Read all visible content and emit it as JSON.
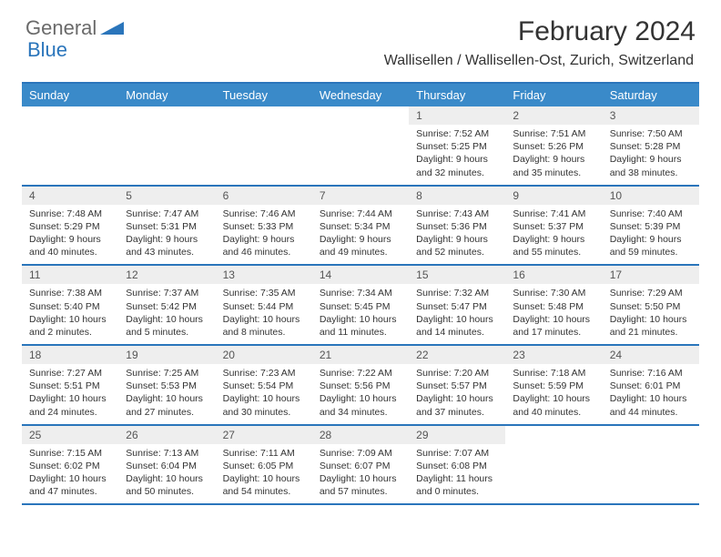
{
  "brand": {
    "part1": "General",
    "part2": "Blue",
    "color_gray": "#6a6a6a",
    "color_blue": "#2a75bb"
  },
  "title": "February 2024",
  "location": "Wallisellen / Wallisellen-Ost, Zurich, Switzerland",
  "colors": {
    "header_bg": "#3a8ac9",
    "header_text": "#ffffff",
    "border": "#2a75bb",
    "daynum_bg": "#eeeeee",
    "text": "#333333"
  },
  "day_names": [
    "Sunday",
    "Monday",
    "Tuesday",
    "Wednesday",
    "Thursday",
    "Friday",
    "Saturday"
  ],
  "weeks": [
    [
      {
        "n": "",
        "sr": "",
        "ss": "",
        "dl1": "",
        "dl2": ""
      },
      {
        "n": "",
        "sr": "",
        "ss": "",
        "dl1": "",
        "dl2": ""
      },
      {
        "n": "",
        "sr": "",
        "ss": "",
        "dl1": "",
        "dl2": ""
      },
      {
        "n": "",
        "sr": "",
        "ss": "",
        "dl1": "",
        "dl2": ""
      },
      {
        "n": "1",
        "sr": "Sunrise: 7:52 AM",
        "ss": "Sunset: 5:25 PM",
        "dl1": "Daylight: 9 hours",
        "dl2": "and 32 minutes."
      },
      {
        "n": "2",
        "sr": "Sunrise: 7:51 AM",
        "ss": "Sunset: 5:26 PM",
        "dl1": "Daylight: 9 hours",
        "dl2": "and 35 minutes."
      },
      {
        "n": "3",
        "sr": "Sunrise: 7:50 AM",
        "ss": "Sunset: 5:28 PM",
        "dl1": "Daylight: 9 hours",
        "dl2": "and 38 minutes."
      }
    ],
    [
      {
        "n": "4",
        "sr": "Sunrise: 7:48 AM",
        "ss": "Sunset: 5:29 PM",
        "dl1": "Daylight: 9 hours",
        "dl2": "and 40 minutes."
      },
      {
        "n": "5",
        "sr": "Sunrise: 7:47 AM",
        "ss": "Sunset: 5:31 PM",
        "dl1": "Daylight: 9 hours",
        "dl2": "and 43 minutes."
      },
      {
        "n": "6",
        "sr": "Sunrise: 7:46 AM",
        "ss": "Sunset: 5:33 PM",
        "dl1": "Daylight: 9 hours",
        "dl2": "and 46 minutes."
      },
      {
        "n": "7",
        "sr": "Sunrise: 7:44 AM",
        "ss": "Sunset: 5:34 PM",
        "dl1": "Daylight: 9 hours",
        "dl2": "and 49 minutes."
      },
      {
        "n": "8",
        "sr": "Sunrise: 7:43 AM",
        "ss": "Sunset: 5:36 PM",
        "dl1": "Daylight: 9 hours",
        "dl2": "and 52 minutes."
      },
      {
        "n": "9",
        "sr": "Sunrise: 7:41 AM",
        "ss": "Sunset: 5:37 PM",
        "dl1": "Daylight: 9 hours",
        "dl2": "and 55 minutes."
      },
      {
        "n": "10",
        "sr": "Sunrise: 7:40 AM",
        "ss": "Sunset: 5:39 PM",
        "dl1": "Daylight: 9 hours",
        "dl2": "and 59 minutes."
      }
    ],
    [
      {
        "n": "11",
        "sr": "Sunrise: 7:38 AM",
        "ss": "Sunset: 5:40 PM",
        "dl1": "Daylight: 10 hours",
        "dl2": "and 2 minutes."
      },
      {
        "n": "12",
        "sr": "Sunrise: 7:37 AM",
        "ss": "Sunset: 5:42 PM",
        "dl1": "Daylight: 10 hours",
        "dl2": "and 5 minutes."
      },
      {
        "n": "13",
        "sr": "Sunrise: 7:35 AM",
        "ss": "Sunset: 5:44 PM",
        "dl1": "Daylight: 10 hours",
        "dl2": "and 8 minutes."
      },
      {
        "n": "14",
        "sr": "Sunrise: 7:34 AM",
        "ss": "Sunset: 5:45 PM",
        "dl1": "Daylight: 10 hours",
        "dl2": "and 11 minutes."
      },
      {
        "n": "15",
        "sr": "Sunrise: 7:32 AM",
        "ss": "Sunset: 5:47 PM",
        "dl1": "Daylight: 10 hours",
        "dl2": "and 14 minutes."
      },
      {
        "n": "16",
        "sr": "Sunrise: 7:30 AM",
        "ss": "Sunset: 5:48 PM",
        "dl1": "Daylight: 10 hours",
        "dl2": "and 17 minutes."
      },
      {
        "n": "17",
        "sr": "Sunrise: 7:29 AM",
        "ss": "Sunset: 5:50 PM",
        "dl1": "Daylight: 10 hours",
        "dl2": "and 21 minutes."
      }
    ],
    [
      {
        "n": "18",
        "sr": "Sunrise: 7:27 AM",
        "ss": "Sunset: 5:51 PM",
        "dl1": "Daylight: 10 hours",
        "dl2": "and 24 minutes."
      },
      {
        "n": "19",
        "sr": "Sunrise: 7:25 AM",
        "ss": "Sunset: 5:53 PM",
        "dl1": "Daylight: 10 hours",
        "dl2": "and 27 minutes."
      },
      {
        "n": "20",
        "sr": "Sunrise: 7:23 AM",
        "ss": "Sunset: 5:54 PM",
        "dl1": "Daylight: 10 hours",
        "dl2": "and 30 minutes."
      },
      {
        "n": "21",
        "sr": "Sunrise: 7:22 AM",
        "ss": "Sunset: 5:56 PM",
        "dl1": "Daylight: 10 hours",
        "dl2": "and 34 minutes."
      },
      {
        "n": "22",
        "sr": "Sunrise: 7:20 AM",
        "ss": "Sunset: 5:57 PM",
        "dl1": "Daylight: 10 hours",
        "dl2": "and 37 minutes."
      },
      {
        "n": "23",
        "sr": "Sunrise: 7:18 AM",
        "ss": "Sunset: 5:59 PM",
        "dl1": "Daylight: 10 hours",
        "dl2": "and 40 minutes."
      },
      {
        "n": "24",
        "sr": "Sunrise: 7:16 AM",
        "ss": "Sunset: 6:01 PM",
        "dl1": "Daylight: 10 hours",
        "dl2": "and 44 minutes."
      }
    ],
    [
      {
        "n": "25",
        "sr": "Sunrise: 7:15 AM",
        "ss": "Sunset: 6:02 PM",
        "dl1": "Daylight: 10 hours",
        "dl2": "and 47 minutes."
      },
      {
        "n": "26",
        "sr": "Sunrise: 7:13 AM",
        "ss": "Sunset: 6:04 PM",
        "dl1": "Daylight: 10 hours",
        "dl2": "and 50 minutes."
      },
      {
        "n": "27",
        "sr": "Sunrise: 7:11 AM",
        "ss": "Sunset: 6:05 PM",
        "dl1": "Daylight: 10 hours",
        "dl2": "and 54 minutes."
      },
      {
        "n": "28",
        "sr": "Sunrise: 7:09 AM",
        "ss": "Sunset: 6:07 PM",
        "dl1": "Daylight: 10 hours",
        "dl2": "and 57 minutes."
      },
      {
        "n": "29",
        "sr": "Sunrise: 7:07 AM",
        "ss": "Sunset: 6:08 PM",
        "dl1": "Daylight: 11 hours",
        "dl2": "and 0 minutes."
      },
      {
        "n": "",
        "sr": "",
        "ss": "",
        "dl1": "",
        "dl2": ""
      },
      {
        "n": "",
        "sr": "",
        "ss": "",
        "dl1": "",
        "dl2": ""
      }
    ]
  ]
}
